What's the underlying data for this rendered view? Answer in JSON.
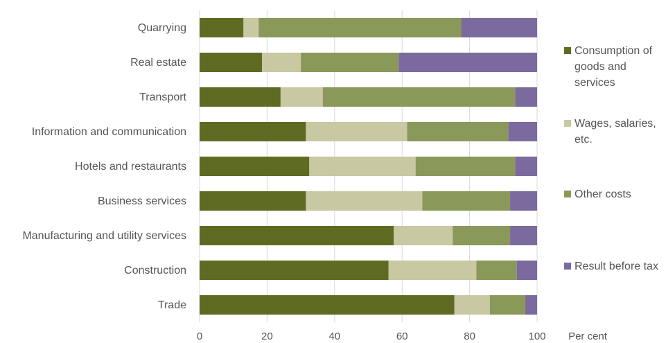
{
  "chart_data": {
    "type": "bar",
    "orientation": "horizontal",
    "stacked": true,
    "categories": [
      "Quarrying",
      "Real estate",
      "Transport",
      "Information and communication",
      "Hotels and restaurants",
      "Business services",
      "Manufacturing and utility services",
      "Construction",
      "Trade"
    ],
    "series": [
      {
        "name": "Consumption of goods and services",
        "color": "#5f6b23",
        "values": [
          13,
          18.5,
          24,
          31.5,
          32.5,
          31.5,
          57.5,
          56,
          75.5
        ]
      },
      {
        "name": "Wages, salaries, etc.",
        "color": "#c8c8a2",
        "values": [
          4.5,
          11.5,
          12.5,
          30,
          31.5,
          34.5,
          17.5,
          26,
          10.5
        ]
      },
      {
        "name": "Other costs",
        "color": "#8a985a",
        "values": [
          60,
          29,
          57,
          30,
          29.5,
          26,
          17,
          12,
          10.5
        ]
      },
      {
        "name": "Result before tax",
        "color": "#7b6a9e",
        "values": [
          22.5,
          41,
          6.5,
          8.5,
          6.5,
          8,
          8,
          6,
          3.5
        ]
      }
    ],
    "x_ticks": [
      "0",
      "20",
      "40",
      "60",
      "80",
      "100"
    ],
    "xlim": [
      0,
      100
    ],
    "xlabel": "Per cent",
    "grid": "vertical",
    "legend_position": "right"
  }
}
